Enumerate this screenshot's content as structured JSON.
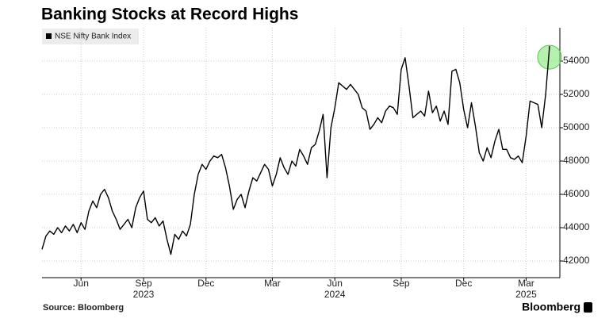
{
  "chart_data": {
    "type": "line",
    "title": "Banking Stocks at Record Highs",
    "source": "Source: Bloomberg",
    "brand": "Bloomberg",
    "legend": "top-left",
    "grid": true,
    "ylim": [
      41000,
      56000
    ],
    "yticks": [
      42000,
      44000,
      46000,
      48000,
      50000,
      52000,
      54000
    ],
    "categories": [
      null,
      null,
      null,
      null,
      null,
      null,
      null,
      null,
      null,
      null,
      "Jun",
      null,
      null,
      null,
      null,
      null,
      null,
      null,
      null,
      null,
      null,
      null,
      null,
      null,
      null,
      null,
      "Sep",
      null,
      null,
      null,
      null,
      null,
      null,
      null,
      null,
      null,
      null,
      null,
      null,
      null,
      null,
      null,
      "Dec",
      null,
      null,
      null,
      null,
      null,
      null,
      null,
      null,
      null,
      null,
      null,
      null,
      null,
      null,
      null,
      null,
      "Mar",
      null,
      null,
      null,
      null,
      null,
      null,
      null,
      null,
      null,
      null,
      null,
      null,
      null,
      null,
      null,
      "Jun",
      null,
      null,
      null,
      null,
      null,
      null,
      null,
      null,
      null,
      null,
      null,
      null,
      null,
      null,
      null,
      null,
      "Sep",
      null,
      null,
      null,
      null,
      null,
      null,
      null,
      null,
      null,
      null,
      null,
      null,
      null,
      null,
      null,
      "Dec",
      null,
      null,
      null,
      null,
      null,
      null,
      null,
      null,
      null,
      null,
      null,
      null,
      null,
      null,
      null,
      "Mar",
      null,
      null,
      null,
      null,
      null,
      null
    ],
    "category_years": [
      null,
      null,
      null,
      null,
      null,
      null,
      null,
      null,
      null,
      null,
      null,
      null,
      null,
      null,
      null,
      null,
      null,
      null,
      null,
      null,
      null,
      null,
      null,
      null,
      null,
      null,
      "2023",
      null,
      null,
      null,
      null,
      null,
      null,
      null,
      null,
      null,
      null,
      null,
      null,
      null,
      null,
      null,
      null,
      null,
      null,
      null,
      null,
      null,
      null,
      null,
      null,
      null,
      null,
      null,
      null,
      null,
      null,
      null,
      null,
      null,
      null,
      null,
      null,
      null,
      null,
      null,
      null,
      null,
      null,
      null,
      null,
      null,
      null,
      null,
      null,
      "2024",
      null,
      null,
      null,
      null,
      null,
      null,
      null,
      null,
      null,
      null,
      null,
      null,
      null,
      null,
      null,
      null,
      null,
      null,
      null,
      null,
      null,
      null,
      null,
      null,
      null,
      null,
      null,
      null,
      null,
      null,
      null,
      null,
      null,
      null,
      null,
      null,
      null,
      null,
      null,
      null,
      null,
      null,
      null,
      null,
      null,
      null,
      null,
      null,
      "2025",
      null,
      null,
      null,
      null,
      null,
      null
    ],
    "series": [
      {
        "name": "NSE Nifty Bank Index",
        "color": "#000000",
        "values": [
          42700,
          43500,
          43800,
          43600,
          44000,
          43700,
          44100,
          43800,
          44200,
          43700,
          44300,
          43900,
          45000,
          45600,
          45200,
          46000,
          46300,
          45800,
          45000,
          44500,
          43900,
          44200,
          44500,
          44000,
          45200,
          45800,
          46200,
          44500,
          44300,
          44600,
          44100,
          44400,
          43300,
          42400,
          43600,
          43300,
          43800,
          43500,
          44200,
          46000,
          47200,
          47800,
          47500,
          48000,
          48300,
          48200,
          48400,
          47600,
          46500,
          45100,
          45700,
          46000,
          45200,
          46200,
          47000,
          46800,
          47300,
          47800,
          47500,
          46500,
          47200,
          48200,
          47600,
          47200,
          48000,
          47700,
          48700,
          48300,
          47800,
          48800,
          49000,
          49800,
          50800,
          47000,
          50000,
          51200,
          52700,
          52500,
          52300,
          52600,
          52300,
          52000,
          51200,
          51000,
          49900,
          50200,
          50600,
          50300,
          51000,
          51300,
          51200,
          50800,
          53500,
          54200,
          52500,
          50600,
          50800,
          51000,
          50700,
          52200,
          50900,
          51300,
          50400,
          51000,
          50200,
          53400,
          53500,
          52700,
          51100,
          50000,
          51500,
          50100,
          48500,
          48000,
          48800,
          48200,
          49200,
          49900,
          48700,
          48700,
          48200,
          48100,
          48300,
          47900,
          49500,
          51600,
          51500,
          51400,
          50000,
          52000,
          54900
        ]
      }
    ]
  }
}
